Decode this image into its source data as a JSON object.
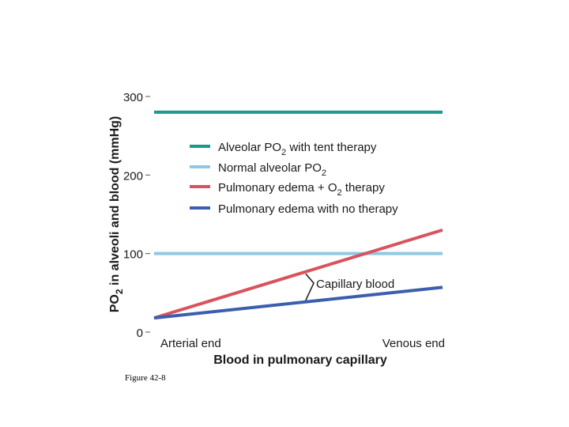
{
  "caption": "Figure 42-8",
  "chart_data": {
    "type": "line",
    "ylabel_parts": [
      "PO",
      "2",
      " in alveoli and blood (mmHg)"
    ],
    "xlabel": "Blood in pulmonary capillary",
    "x_tick_labels": [
      "Arterial end",
      "Venous end"
    ],
    "xlim": [
      0,
      1
    ],
    "ylim": [
      0,
      300
    ],
    "y_ticks": [
      0,
      100,
      200,
      300
    ],
    "grid": false,
    "legend_position": "top-right",
    "colors": {
      "alveolar_tent": "#1a9a8f",
      "normal_alveolar": "#8ec9e3",
      "edema_o2": "#d9535d",
      "edema_no_therapy": "#3b5fae"
    },
    "series": [
      {
        "key": "alveolar_tent",
        "legend_parts": [
          "Alveolar PO",
          "2",
          " with tent therapy"
        ],
        "x": [
          0,
          1
        ],
        "y": [
          280,
          280
        ]
      },
      {
        "key": "normal_alveolar",
        "legend_parts": [
          "Normal alveolar PO",
          "2",
          ""
        ],
        "x": [
          0,
          1
        ],
        "y": [
          100,
          100
        ]
      },
      {
        "key": "edema_o2",
        "legend_parts": [
          "Pulmonary edema +  O",
          "2",
          " therapy"
        ],
        "x": [
          0,
          1
        ],
        "y": [
          18,
          130
        ]
      },
      {
        "key": "edema_no_therapy",
        "legend_parts": [
          "Pulmonary edema with no therapy",
          "",
          ""
        ],
        "x": [
          0,
          1
        ],
        "y": [
          18,
          57
        ]
      }
    ],
    "annotation": {
      "text": "Capillary blood"
    }
  }
}
